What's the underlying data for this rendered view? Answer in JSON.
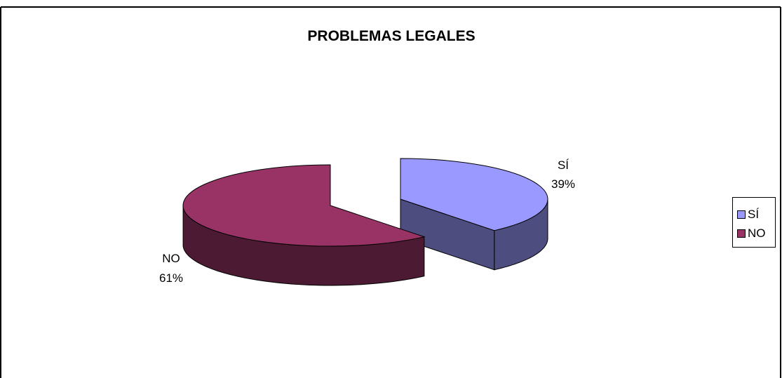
{
  "chart_data": {
    "type": "pie",
    "title": "PROBLEMAS LEGALES",
    "categories": [
      "SÍ",
      "NO"
    ],
    "values": [
      39,
      61
    ],
    "data_labels": [
      {
        "name": "SÍ",
        "percent": "39%"
      },
      {
        "name": "NO",
        "percent": "61%"
      }
    ],
    "colors": {
      "SÍ": {
        "top": "#9999ff",
        "side": "#4d4d80"
      },
      "NO": {
        "top": "#993366",
        "side": "#4d1a33"
      }
    },
    "style": "3d-exploded",
    "legend_position": "right"
  },
  "legend": {
    "items": [
      {
        "label": "SÍ",
        "color": "#9999ff"
      },
      {
        "label": "NO",
        "color": "#993366"
      }
    ]
  }
}
